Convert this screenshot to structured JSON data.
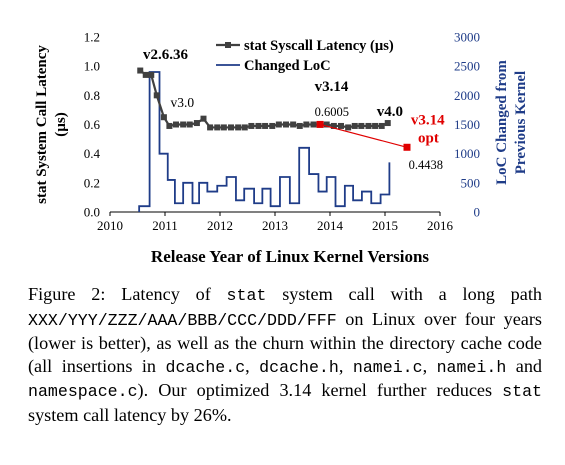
{
  "chart_data": {
    "type": "line",
    "xlabel": "Release Year of Linux Kernel Versions",
    "ylabel_left": "stat System Call Latency (µs)",
    "ylabel_right": "LoC Changed from Previous Kernel",
    "xlim": [
      2010,
      2016
    ],
    "xticks": [
      "2010",
      "2011",
      "2012",
      "2013",
      "2014",
      "2015",
      "2016"
    ],
    "ylim_left": [
      0,
      1.2
    ],
    "yticks_left": [
      "0.0",
      "0.2",
      "0.4",
      "0.6",
      "0.8",
      "1.0",
      "1.2"
    ],
    "ylim_right": [
      0,
      3000
    ],
    "yticks_right": [
      "0",
      "500",
      "1000",
      "1500",
      "2000",
      "2500",
      "3000"
    ],
    "grid": false,
    "legend": "top-right",
    "series": [
      {
        "name": "stat Syscall Latency (µs)",
        "axis": "left",
        "color": "#404040",
        "marker": "square",
        "x": [
          2010.55,
          2010.65,
          2010.75,
          2010.85,
          2010.98,
          2011.08,
          2011.2,
          2011.33,
          2011.45,
          2011.58,
          2011.7,
          2011.82,
          2011.95,
          2012.07,
          2012.2,
          2012.33,
          2012.45,
          2012.57,
          2012.7,
          2012.82,
          2012.95,
          2013.07,
          2013.2,
          2013.33,
          2013.45,
          2013.57,
          2013.7,
          2013.82,
          2013.94,
          2014.07,
          2014.2,
          2014.33,
          2014.45,
          2014.57,
          2014.7,
          2014.82,
          2014.94,
          2015.05
        ],
        "y": [
          0.97,
          0.94,
          0.94,
          0.8,
          0.65,
          0.59,
          0.6,
          0.6,
          0.6,
          0.61,
          0.64,
          0.58,
          0.58,
          0.58,
          0.58,
          0.58,
          0.58,
          0.59,
          0.59,
          0.59,
          0.59,
          0.6,
          0.6,
          0.6,
          0.59,
          0.6,
          0.6,
          0.6,
          0.6,
          0.59,
          0.59,
          0.58,
          0.59,
          0.59,
          0.59,
          0.59,
          0.59,
          0.61
        ]
      },
      {
        "name": "Changed LoC",
        "axis": "right",
        "color": "#1f3c88",
        "type": "step",
        "x": [
          2010.53,
          2010.72,
          2010.9,
          2011.05,
          2011.18,
          2011.33,
          2011.5,
          2011.62,
          2011.77,
          2011.95,
          2012.12,
          2012.29,
          2012.44,
          2012.62,
          2012.77,
          2012.92,
          2013.09,
          2013.27,
          2013.44,
          2013.62,
          2013.79,
          2013.94,
          2014.1,
          2014.27,
          2014.42,
          2014.58,
          2014.75,
          2014.92,
          2015.08
        ],
        "y": [
          100,
          2400,
          1000,
          550,
          150,
          500,
          150,
          500,
          350,
          450,
          600,
          200,
          400,
          150,
          400,
          100,
          600,
          150,
          1100,
          650,
          350,
          600,
          100,
          450,
          200,
          350,
          150,
          300,
          850
        ]
      }
    ],
    "highlight": {
      "name": "v3.14 opt",
      "color": "#e00000",
      "from": {
        "x": 2013.82,
        "y": 0.6005
      },
      "to": {
        "x": 2015.4,
        "y": 0.4438
      }
    },
    "annotations": [
      {
        "text": "v2.6.36",
        "x": 2010.6,
        "y": 1.05,
        "bold": true,
        "size": "large"
      },
      {
        "text": "v3.0",
        "x": 2011.1,
        "y": 0.72,
        "bold": false,
        "size": "normal"
      },
      {
        "text": "v3.14",
        "x": 2013.72,
        "y": 0.83,
        "bold": true,
        "size": "large"
      },
      {
        "text": "0.6005",
        "x": 2013.72,
        "y": 0.66,
        "bold": false,
        "size": "small"
      },
      {
        "text": "v4.0",
        "x": 2014.85,
        "y": 0.66,
        "bold": true,
        "size": "large"
      },
      {
        "text": "v3.14",
        "x": 2015.47,
        "y": 0.6,
        "bold": true,
        "size": "large",
        "color": "#e00000"
      },
      {
        "text": "opt",
        "x": 2015.6,
        "y": 0.475,
        "bold": true,
        "size": "large",
        "color": "#e00000"
      },
      {
        "text": "0.4438",
        "x": 2015.43,
        "y": 0.295,
        "bold": false,
        "size": "small"
      }
    ]
  },
  "caption": {
    "fig_label": "Figure 2:",
    "p1": " Latency of ",
    "code_stat": "stat",
    "p2": " system call with a long path ",
    "code_path": "XXX/YYY/ZZZ/AAA/BBB/CCC/DDD/FFF",
    "p3": " on Linux over four years (lower is better), as well as the churn within the directory cache code (all insertions in ",
    "code_f1": "dcache.c",
    "p4": ", ",
    "code_f2": "dcache.h",
    "p5": ", ",
    "code_f3": "namei.c",
    "p6": ", ",
    "code_f4": "namei.h",
    "p7": " and ",
    "code_f5": "namespace.c",
    "p8": "). Our optimized 3.14 kernel further reduces ",
    "code_stat2": "stat",
    "p9": " system call latency by 26%."
  }
}
